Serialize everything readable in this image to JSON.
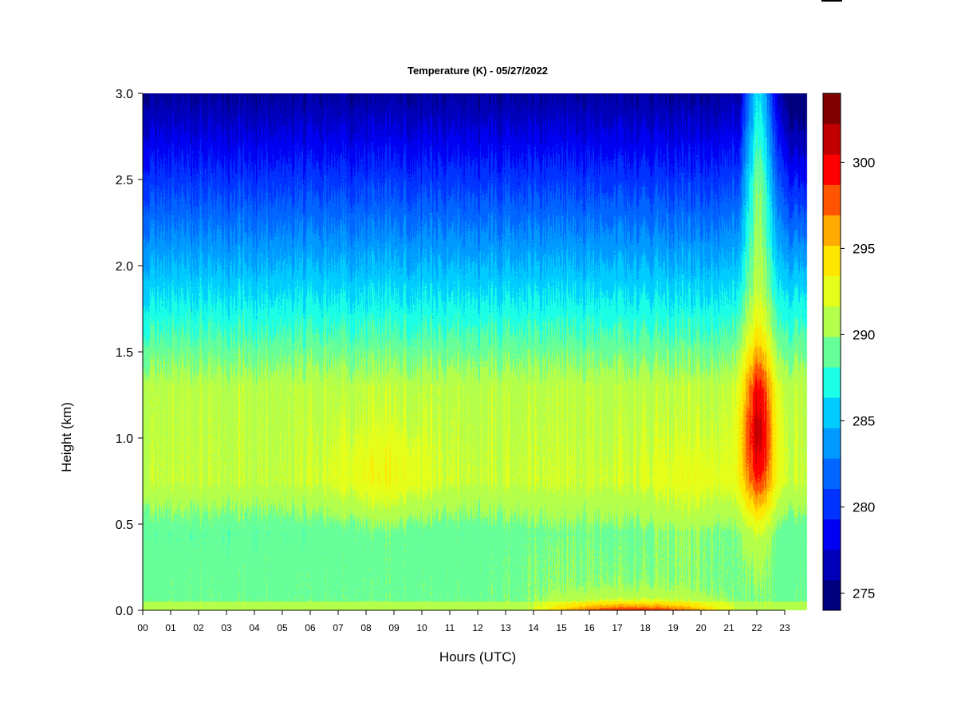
{
  "chart_data": {
    "type": "heatmap",
    "title": "Temperature (K) - 05/27/2022",
    "xlabel": "Hours (UTC)",
    "ylabel": "Height (km)",
    "x_ticks": [
      "00",
      "01",
      "02",
      "03",
      "04",
      "05",
      "06",
      "07",
      "08",
      "09",
      "10",
      "11",
      "12",
      "13",
      "14",
      "15",
      "16",
      "17",
      "18",
      "19",
      "20",
      "21",
      "22",
      "23"
    ],
    "y_ticks": [
      "0.0",
      "0.5",
      "1.0",
      "1.5",
      "2.0",
      "2.5",
      "3.0"
    ],
    "xlim": [
      0,
      24
    ],
    "ylim": [
      0,
      3.0
    ],
    "colorbar": {
      "ticks": [
        "275",
        "280",
        "285",
        "290",
        "295",
        "300"
      ],
      "range": [
        274,
        304
      ],
      "levels": [
        274,
        276,
        278,
        280,
        282,
        284,
        286,
        288,
        290,
        292,
        294,
        296,
        298,
        300,
        302,
        304
      ],
      "colors": [
        "#00007f",
        "#0000b8",
        "#0000f2",
        "#0033ff",
        "#0066ff",
        "#0099ff",
        "#00ccff",
        "#1affe6",
        "#66ff99",
        "#b3ff4c",
        "#e6ff1a",
        "#ffe600",
        "#ffaa00",
        "#ff5500",
        "#ff0000",
        "#c00000",
        "#800000"
      ]
    },
    "field_description_points": [
      {
        "hour": 8.5,
        "height_km": 0.75,
        "temperature_K": 293
      },
      {
        "hour": 2,
        "height_km": 0.2,
        "temperature_K": 288
      },
      {
        "hour": 12,
        "height_km": 2.8,
        "temperature_K": 277
      },
      {
        "hour": 17.5,
        "height_km": 0.05,
        "temperature_K": 298
      },
      {
        "hour": 22.1,
        "height_km": 1.0,
        "temperature_K": 300
      }
    ]
  }
}
